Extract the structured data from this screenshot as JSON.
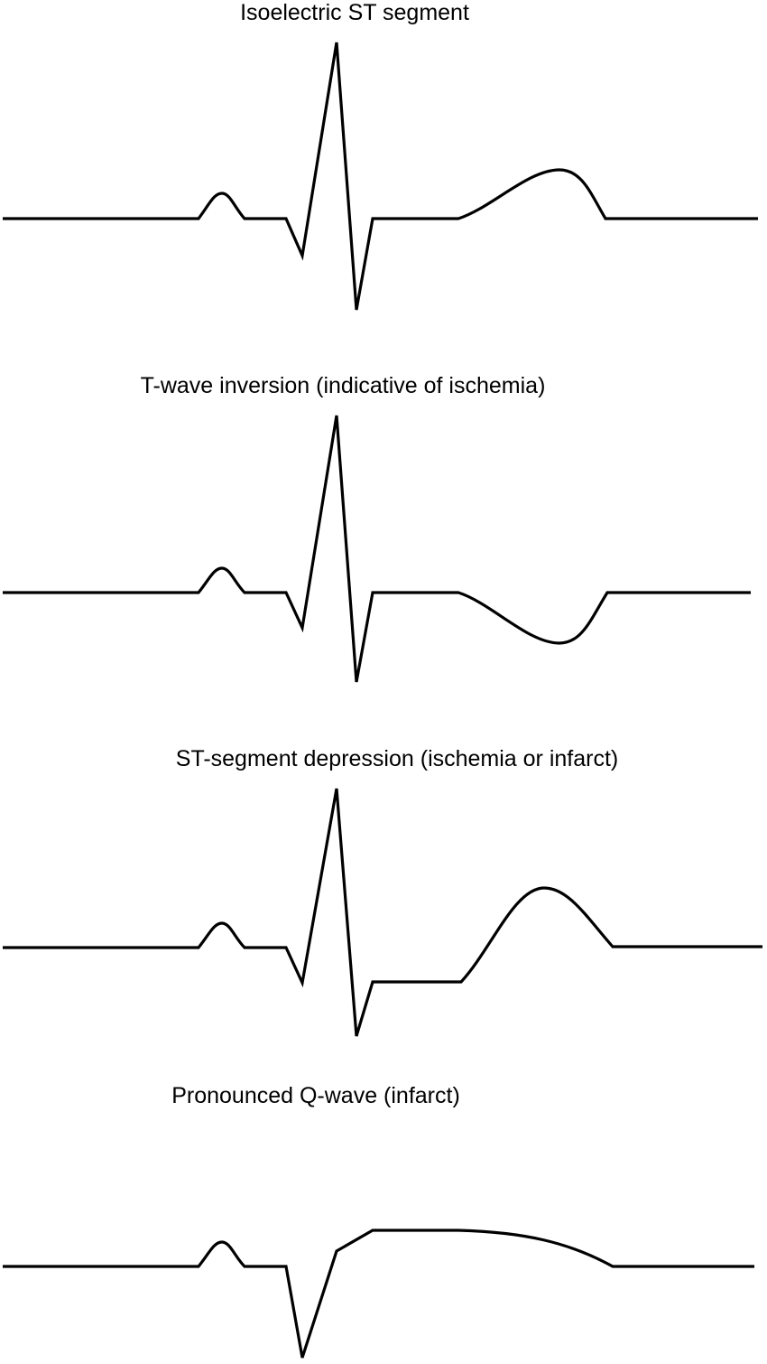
{
  "colors": {
    "background": "#ffffff",
    "trace": "#000000",
    "text": "#000000"
  },
  "panels": [
    {
      "caption": "Isoelectric ST segment",
      "variant": "isoelectric-st"
    },
    {
      "caption": "T-wave inversion (indicative of ischemia)",
      "variant": "t-wave-inversion"
    },
    {
      "caption": "ST-segment depression (ischemia or infarct)",
      "variant": "st-depression"
    },
    {
      "caption": "Pronounced Q-wave (infarct)",
      "variant": "pronounced-q-wave"
    }
  ]
}
